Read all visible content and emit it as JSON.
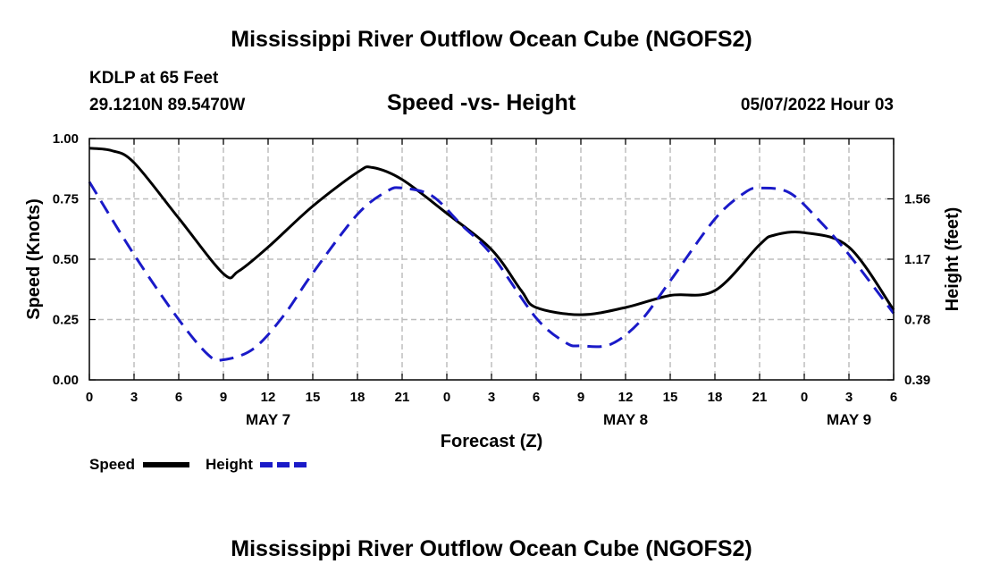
{
  "page": {
    "title_top": "Mississippi River Outflow Ocean Cube (NGOFS2)",
    "title_bottom": "Mississippi River Outflow Ocean Cube (NGOFS2)"
  },
  "meta": {
    "station": "KDLP at 65 Feet",
    "coords": "29.1210N  89.5470W",
    "subtitle": "Speed -vs- Height",
    "datetime": "05/07/2022 Hour 03"
  },
  "chart_data": {
    "type": "line",
    "title": "Speed -vs- Height",
    "xlabel": "Forecast (Z)",
    "ylabel": "Speed (Knots)",
    "y2label": "Height (feet)",
    "x_ticks": [
      "0",
      "3",
      "6",
      "9",
      "12",
      "15",
      "18",
      "21",
      "0",
      "3",
      "6",
      "9",
      "12",
      "15",
      "18",
      "21",
      "0",
      "3",
      "6"
    ],
    "x_range_hours": [
      0,
      54
    ],
    "day_labels": [
      {
        "label": "MAY 7",
        "hour": 12
      },
      {
        "label": "MAY 8",
        "hour": 36
      },
      {
        "label": "MAY 9",
        "hour": 51
      }
    ],
    "ylim": [
      0,
      1
    ],
    "y_ticks": [
      "0.00",
      "0.25",
      "0.50",
      "0.75",
      "1.00"
    ],
    "y_tick_values": [
      0,
      0.25,
      0.5,
      0.75,
      1.0
    ],
    "y2lim": [
      0.39,
      1.95
    ],
    "y2_ticks": [
      "0.39",
      "0.78",
      "1.17",
      "1.56"
    ],
    "y2_tick_values": [
      0.39,
      0.78,
      1.17,
      1.56
    ],
    "grid": true,
    "series": [
      {
        "name": "Speed",
        "axis": "left",
        "color": "#000000",
        "dash": "solid",
        "x": [
          0,
          1.5,
          3,
          6,
          9,
          10,
          12,
          15,
          18,
          19,
          21,
          24,
          27,
          29,
          30,
          33,
          36,
          39,
          42,
          45,
          46,
          48,
          51,
          54
        ],
        "y": [
          0.96,
          0.95,
          0.9,
          0.67,
          0.44,
          0.45,
          0.55,
          0.72,
          0.86,
          0.88,
          0.83,
          0.69,
          0.54,
          0.37,
          0.3,
          0.27,
          0.3,
          0.35,
          0.37,
          0.56,
          0.6,
          0.61,
          0.55,
          0.29
        ]
      },
      {
        "name": "Height",
        "axis": "right",
        "color": "#1a1ac8",
        "dash": "dashed",
        "x": [
          0,
          3,
          6,
          8,
          9,
          11,
          13,
          15,
          18,
          20,
          21,
          23,
          25,
          27,
          30,
          32,
          33,
          35,
          37,
          39,
          42,
          44,
          45,
          47,
          49,
          51,
          54
        ],
        "y": [
          1.67,
          1.2,
          0.78,
          0.55,
          0.52,
          0.59,
          0.8,
          1.08,
          1.46,
          1.61,
          1.63,
          1.58,
          1.39,
          1.2,
          0.79,
          0.63,
          0.61,
          0.62,
          0.77,
          1.03,
          1.43,
          1.6,
          1.63,
          1.6,
          1.42,
          1.2,
          0.82
        ]
      }
    ],
    "legend": [
      {
        "label": "Speed",
        "color": "#000000",
        "dash": "solid"
      },
      {
        "label": "Height",
        "color": "#1a1ac8",
        "dash": "dashed"
      }
    ],
    "legend_position": "bottom-left"
  }
}
